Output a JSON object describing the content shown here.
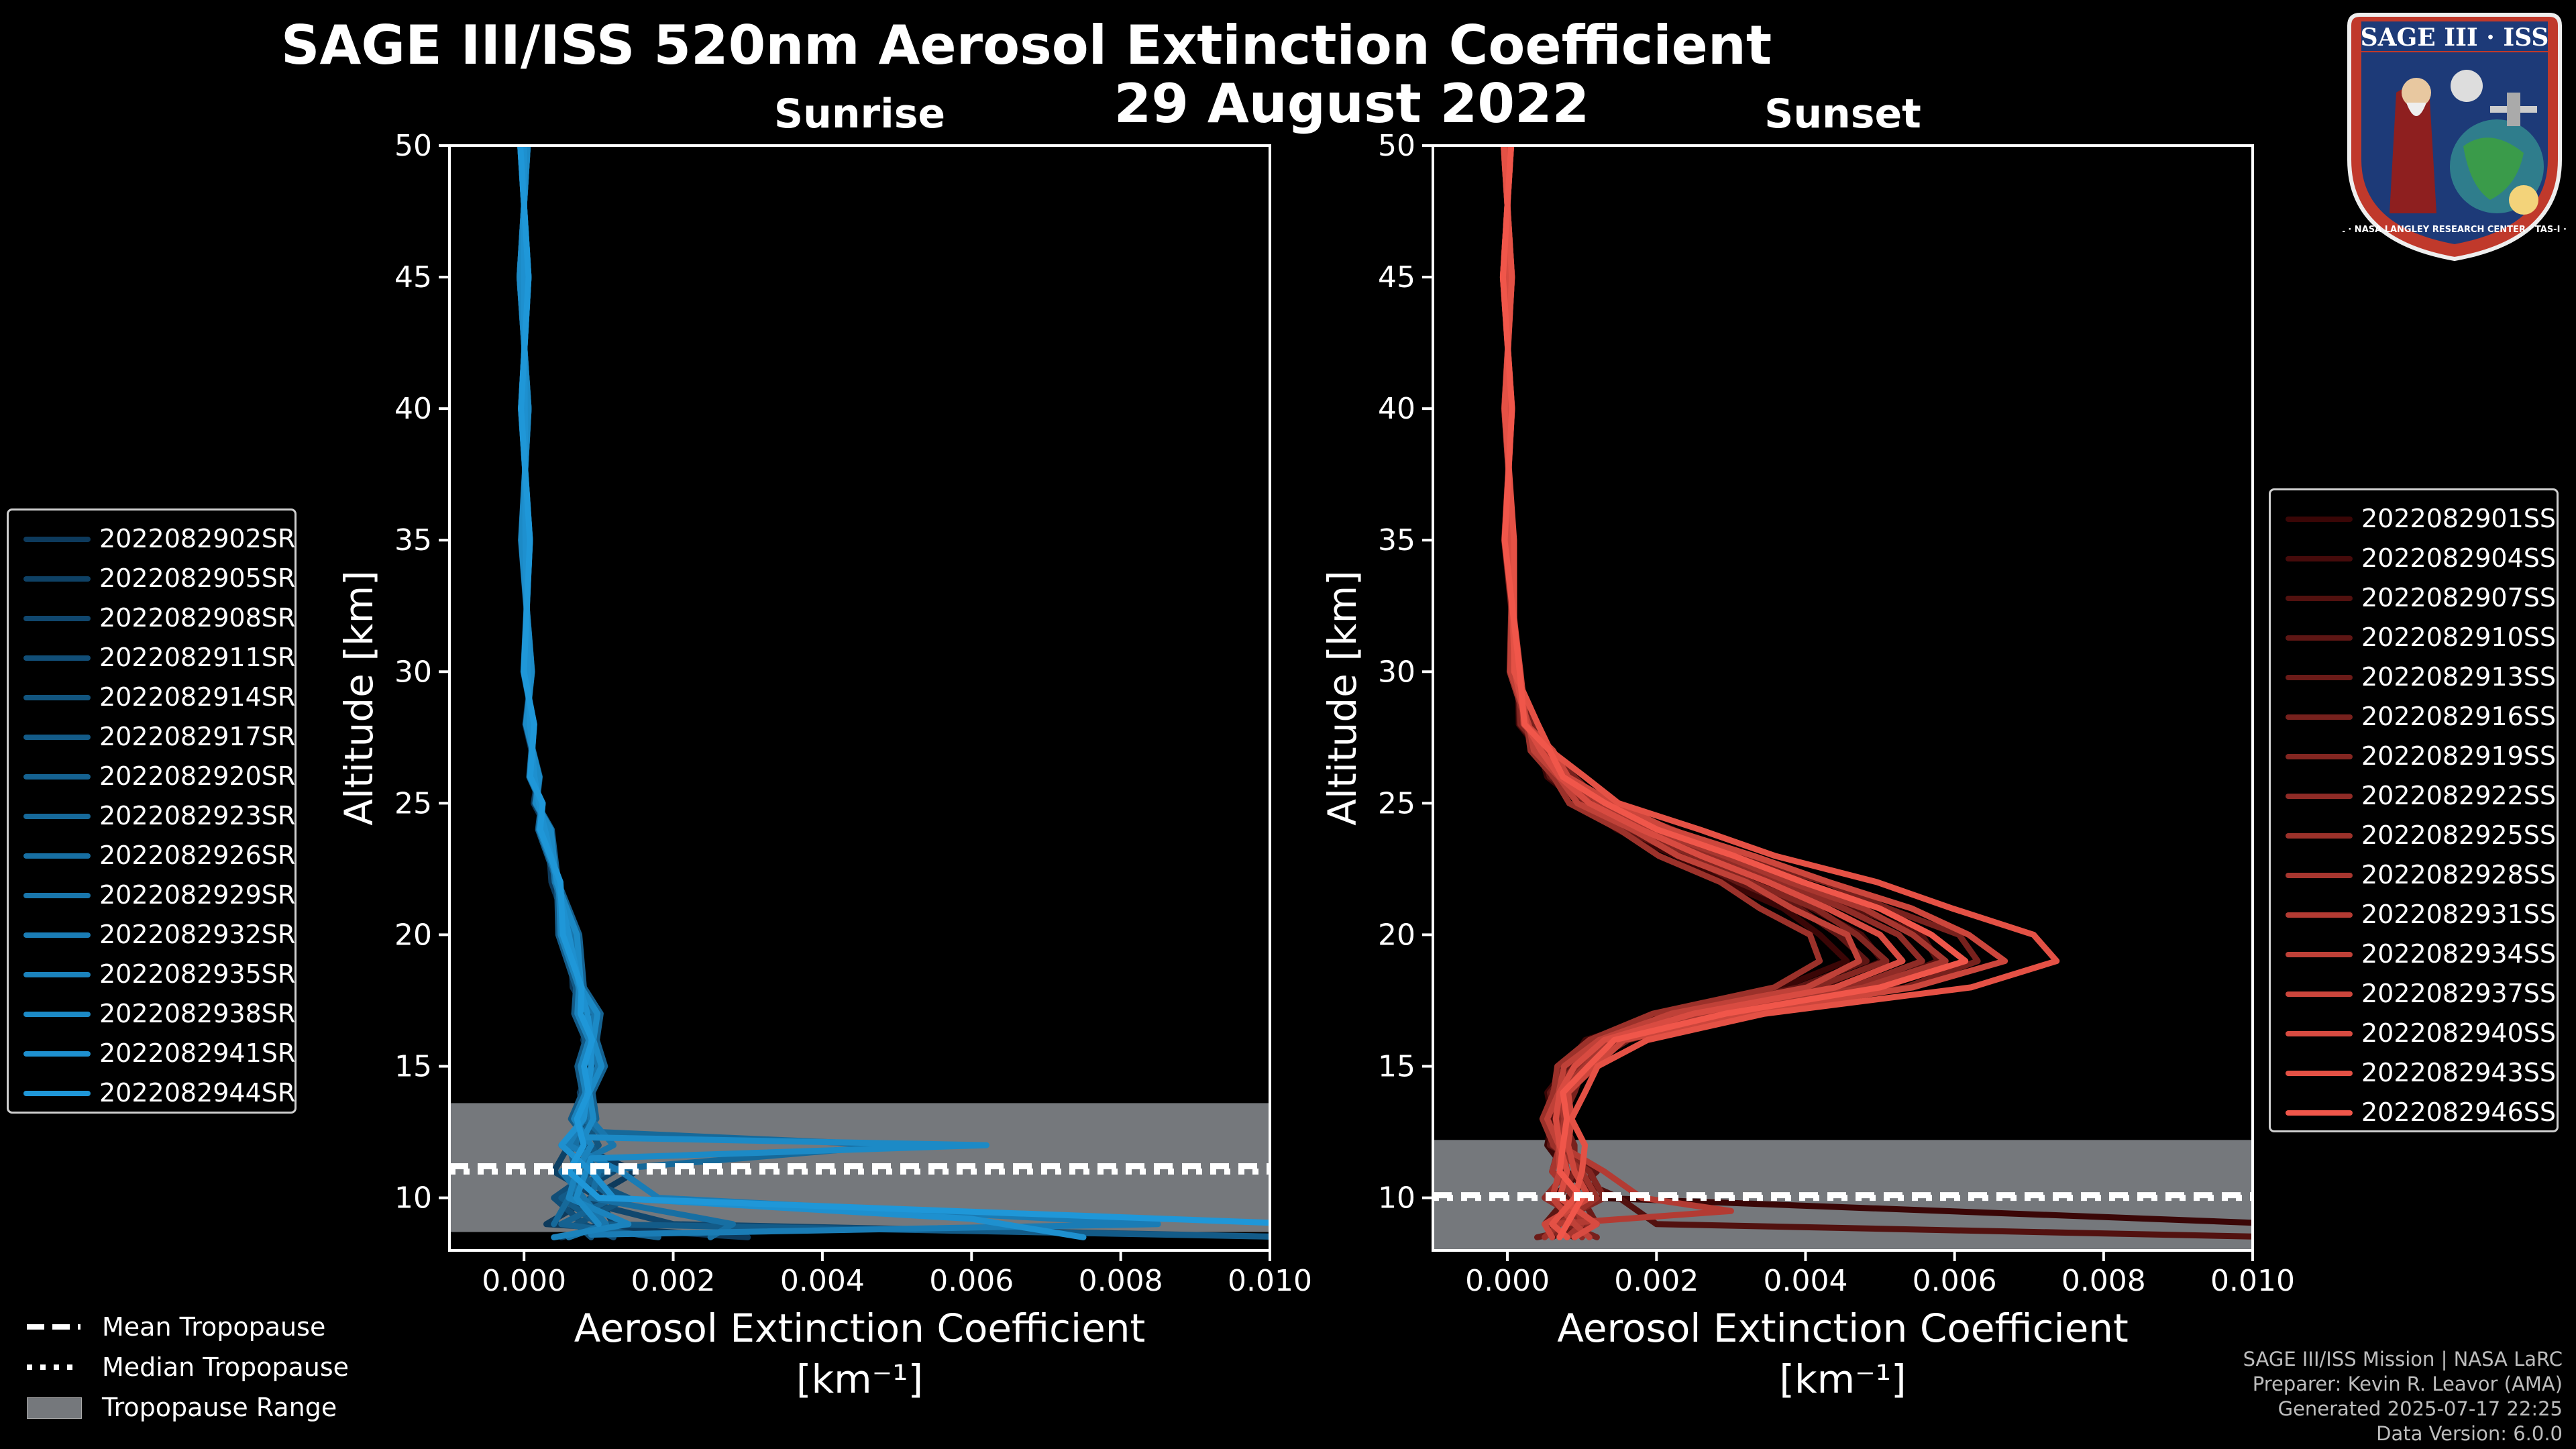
{
  "title": {
    "line1": "SAGE III/ISS 520nm Aerosol Extinction Coefficient",
    "line2": "29 August 2022"
  },
  "logo": {
    "top_text": "SAGE III · ISS",
    "ring_text": "BALL · NASA LANGLEY RESEARCH CENTER · TAS-I · ESA"
  },
  "footer": {
    "line1": "SAGE III/ISS Mission | NASA LaRC",
    "line2": "Preparer: Kevin R. Leavor (AMA)",
    "line3": "Generated 2025-07-17 22:25",
    "line4": "Data Version: 6.0.0"
  },
  "tropopause_legend": {
    "mean": "Mean Tropopause",
    "median": "Median Tropopause",
    "range": "Tropopause Range"
  },
  "chart_data": [
    {
      "type": "line",
      "panel": "sunrise",
      "title": "Sunrise",
      "xlabel": "Aerosol Extinction Coefficient",
      "xunit": "[km⁻¹]",
      "ylabel": "Altitude [km]",
      "xlim": [
        -0.001,
        0.01
      ],
      "ylim": [
        8,
        50
      ],
      "xticks": [
        0.0,
        0.002,
        0.004,
        0.006,
        0.008,
        0.01
      ],
      "xtick_labels": [
        "0.000",
        "0.002",
        "0.004",
        "0.006",
        "0.008",
        "0.010"
      ],
      "yticks": [
        10,
        15,
        20,
        25,
        30,
        35,
        40,
        45,
        50
      ],
      "tropopause": {
        "mean": 11.2,
        "median": 11.0,
        "range": [
          8.7,
          13.6
        ]
      },
      "color_dark": "#0d3a5c",
      "color_light": "#1f97d8",
      "base_profile": {
        "alt": [
          50,
          45,
          40,
          35,
          30,
          28,
          26,
          25,
          24,
          22,
          20,
          18,
          17,
          16,
          15,
          14,
          13
        ],
        "ext": [
          0.0,
          0.0,
          1e-05,
          2e-05,
          5e-05,
          8e-05,
          0.00014,
          0.0002,
          0.00028,
          0.00045,
          0.0006,
          0.00075,
          0.00085,
          0.0009,
          0.0009,
          0.00085,
          0.0008
        ]
      },
      "series": [
        {
          "name": "2022082902SR",
          "scale": 0.95,
          "low": [
            [
              12,
              0.0007
            ],
            [
              11,
              0.0015
            ],
            [
              10,
              0.0009
            ],
            [
              9,
              0.0003
            ],
            [
              8.5,
              0.003
            ]
          ]
        },
        {
          "name": "2022082905SR",
          "scale": 1.05,
          "low": [
            [
              12,
              0.0006
            ],
            [
              11,
              0.0004
            ],
            [
              10,
              0.001
            ],
            [
              9,
              0.0012
            ],
            [
              8.5,
              0.0005
            ]
          ]
        },
        {
          "name": "2022082908SR",
          "scale": 0.9,
          "low": [
            [
              12,
              0.0008
            ],
            [
              11,
              0.0012
            ],
            [
              10,
              0.0006
            ],
            [
              9,
              0.002
            ],
            [
              8.5,
              0.0105
            ]
          ]
        },
        {
          "name": "2022082911SR",
          "scale": 1.1,
          "low": [
            [
              12,
              0.0005
            ],
            [
              11,
              0.0009
            ],
            [
              10,
              0.0004
            ],
            [
              9,
              0.0008
            ],
            [
              8.5,
              0.0012
            ]
          ]
        },
        {
          "name": "2022082914SR",
          "scale": 1.0,
          "low": [
            [
              12,
              0.001
            ],
            [
              11,
              0.0006
            ],
            [
              10,
              0.0014
            ],
            [
              9,
              0.0007
            ],
            [
              8.5,
              0.0009
            ]
          ]
        },
        {
          "name": "2022082917SR",
          "scale": 0.85,
          "low": [
            [
              12,
              0.0009
            ],
            [
              11,
              0.0011
            ],
            [
              10,
              0.0005
            ],
            [
              9,
              0.001
            ],
            [
              8.5,
              0.0105
            ]
          ]
        },
        {
          "name": "2022082920SR",
          "scale": 1.15,
          "low": [
            [
              12,
              0.0006
            ],
            [
              11,
              0.0007
            ],
            [
              10,
              0.0012
            ],
            [
              9,
              0.0005
            ],
            [
              8.5,
              0.0018
            ]
          ]
        },
        {
          "name": "2022082923SR",
          "scale": 1.0,
          "low": [
            [
              12.5,
              0.001
            ],
            [
              12,
              0.005
            ],
            [
              11,
              0.0008
            ],
            [
              10,
              0.0006
            ],
            [
              9,
              0.0004
            ]
          ]
        },
        {
          "name": "2022082926SR",
          "scale": 0.95,
          "low": [
            [
              12,
              0.0007
            ],
            [
              11,
              0.001
            ],
            [
              10,
              0.0009
            ],
            [
              9,
              0.0028
            ],
            [
              8.5,
              0.0025
            ]
          ]
        },
        {
          "name": "2022082929SR",
          "scale": 1.05,
          "low": [
            [
              12,
              0.0012
            ],
            [
              11,
              0.0005
            ],
            [
              10,
              0.0008
            ],
            [
              9,
              0.0011
            ],
            [
              8.5,
              0.0006
            ]
          ]
        },
        {
          "name": "2022082932SR",
          "scale": 1.0,
          "low": [
            [
              12,
              0.0006
            ],
            [
              11,
              0.0013
            ],
            [
              10,
              0.0018
            ],
            [
              9,
              0.0085
            ],
            [
              8.6,
              0.0009
            ]
          ]
        },
        {
          "name": "2022082935SR",
          "scale": 0.9,
          "low": [
            [
              12,
              0.0009
            ],
            [
              11,
              0.0007
            ],
            [
              10,
              0.0006
            ],
            [
              9,
              0.0014
            ],
            [
              8.5,
              0.0004
            ]
          ]
        },
        {
          "name": "2022082938SR",
          "scale": 1.1,
          "low": [
            [
              12.3,
              0.0008
            ],
            [
              12,
              0.0062
            ],
            [
              11.5,
              0.0009
            ],
            [
              10,
              0.0007
            ],
            [
              9,
              0.001
            ]
          ]
        },
        {
          "name": "2022082941SR",
          "scale": 1.0,
          "low": [
            [
              12,
              0.0005
            ],
            [
              11,
              0.0009
            ],
            [
              10,
              0.0012
            ],
            [
              9.2,
              0.006
            ],
            [
              8.5,
              0.0075
            ]
          ]
        },
        {
          "name": "2022082944SR",
          "scale": 0.95,
          "low": [
            [
              12,
              0.0008
            ],
            [
              11,
              0.0006
            ],
            [
              10,
              0.001
            ],
            [
              9,
              0.0105
            ],
            [
              8.5,
              0.0105
            ]
          ]
        }
      ]
    },
    {
      "type": "line",
      "panel": "sunset",
      "title": "Sunset",
      "xlabel": "Aerosol Extinction Coefficient",
      "xunit": "[km⁻¹]",
      "ylabel": "Altitude [km]",
      "xlim": [
        -0.001,
        0.01
      ],
      "ylim": [
        8,
        50
      ],
      "xticks": [
        0.0,
        0.002,
        0.004,
        0.006,
        0.008,
        0.01
      ],
      "xtick_labels": [
        "0.000",
        "0.002",
        "0.004",
        "0.006",
        "0.008",
        "0.010"
      ],
      "yticks": [
        10,
        15,
        20,
        25,
        30,
        35,
        40,
        45,
        50
      ],
      "tropopause": {
        "mean": 10.1,
        "median": 10.0,
        "range": [
          8.0,
          12.2
        ]
      },
      "color_dark": "#3a0606",
      "color_light": "#f0564a",
      "base_profile": {
        "alt": [
          50,
          45,
          40,
          35,
          30,
          28,
          27,
          26,
          25,
          24,
          23,
          22,
          21,
          20,
          19,
          18,
          17,
          16,
          15,
          14,
          13,
          12
        ],
        "ext": [
          0.0,
          0.0,
          1e-05,
          2e-05,
          0.0001,
          0.00025,
          0.00045,
          0.0007,
          0.0011,
          0.0018,
          0.0026,
          0.0035,
          0.0043,
          0.005,
          0.0053,
          0.0044,
          0.0025,
          0.0013,
          0.0009,
          0.0007,
          0.00065,
          0.0007
        ]
      },
      "series": [
        {
          "name": "2022082901SS",
          "scale": 0.85,
          "low": [
            [
              11,
              0.0008
            ],
            [
              10,
              0.0012
            ],
            [
              9,
              0.0105
            ],
            [
              8.5,
              0.0105
            ]
          ]
        },
        {
          "name": "2022082904SS",
          "scale": 0.95,
          "low": [
            [
              11,
              0.001
            ],
            [
              10,
              0.0006
            ],
            [
              9,
              0.0009
            ],
            [
              8.5,
              0.0006
            ]
          ]
        },
        {
          "name": "2022082907SS",
          "scale": 1.1,
          "low": [
            [
              11,
              0.0007
            ],
            [
              10,
              0.0015
            ],
            [
              9,
              0.002
            ],
            [
              8.5,
              0.0105
            ]
          ]
        },
        {
          "name": "2022082910SS",
          "scale": 0.9,
          "low": [
            [
              11,
              0.0012
            ],
            [
              10,
              0.0008
            ],
            [
              9,
              0.0005
            ],
            [
              8.5,
              0.0009
            ]
          ]
        },
        {
          "name": "2022082913SS",
          "scale": 1.0,
          "low": [
            [
              11,
              0.0006
            ],
            [
              10,
              0.001
            ],
            [
              9,
              0.0012
            ],
            [
              8.5,
              0.0004
            ]
          ]
        },
        {
          "name": "2022082916SS",
          "scale": 1.2,
          "low": [
            [
              11,
              0.0009
            ],
            [
              10,
              0.0007
            ],
            [
              9,
              0.0008
            ],
            [
              8.5,
              0.0012
            ]
          ]
        },
        {
          "name": "2022082919SS",
          "scale": 0.95,
          "low": [
            [
              11,
              0.0011
            ],
            [
              10,
              0.0013
            ],
            [
              9,
              0.0006
            ],
            [
              8.5,
              0.0007
            ]
          ]
        },
        {
          "name": "2022082922SS",
          "scale": 1.05,
          "low": [
            [
              11,
              0.0008
            ],
            [
              10,
              0.0005
            ],
            [
              9,
              0.0011
            ],
            [
              8.5,
              0.001
            ]
          ]
        },
        {
          "name": "2022082925SS",
          "scale": 0.8,
          "low": [
            [
              11,
              0.001
            ],
            [
              10,
              0.0012
            ],
            [
              9,
              0.0007
            ],
            [
              8.5,
              0.0005
            ]
          ]
        },
        {
          "name": "2022082928SS",
          "scale": 1.1,
          "low": [
            [
              11,
              0.0006
            ],
            [
              10,
              0.0009
            ],
            [
              9,
              0.001
            ],
            [
              8.5,
              0.0008
            ]
          ]
        },
        {
          "name": "2022082931SS",
          "scale": 1.0,
          "low": [
            [
              11,
              0.0013
            ],
            [
              10,
              0.0018
            ],
            [
              9.5,
              0.003
            ],
            [
              9,
              0.0006
            ]
          ]
        },
        {
          "name": "2022082934SS",
          "scale": 0.9,
          "low": [
            [
              11,
              0.0007
            ],
            [
              10,
              0.0006
            ],
            [
              9,
              0.0009
            ],
            [
              8.5,
              0.0011
            ]
          ]
        },
        {
          "name": "2022082937SS",
          "scale": 1.25,
          "low": [
            [
              11,
              0.0009
            ],
            [
              10,
              0.0011
            ],
            [
              9,
              0.0005
            ],
            [
              8.5,
              0.0006
            ]
          ]
        },
        {
          "name": "2022082940SS",
          "scale": 1.0,
          "low": [
            [
              11,
              0.0008
            ],
            [
              10,
              0.0007
            ],
            [
              9,
              0.0012
            ],
            [
              8.5,
              0.0009
            ]
          ]
        },
        {
          "name": "2022082943SS",
          "scale": 1.4,
          "low": [
            [
              11,
              0.001
            ],
            [
              10,
              0.0009
            ],
            [
              9,
              0.0006
            ],
            [
              8.5,
              0.0008
            ]
          ]
        },
        {
          "name": "2022082946SS",
          "scale": 1.15,
          "low": [
            [
              11,
              0.0007
            ],
            [
              10,
              0.001
            ],
            [
              9,
              0.0008
            ],
            [
              8.5,
              0.0007
            ]
          ]
        }
      ]
    }
  ]
}
